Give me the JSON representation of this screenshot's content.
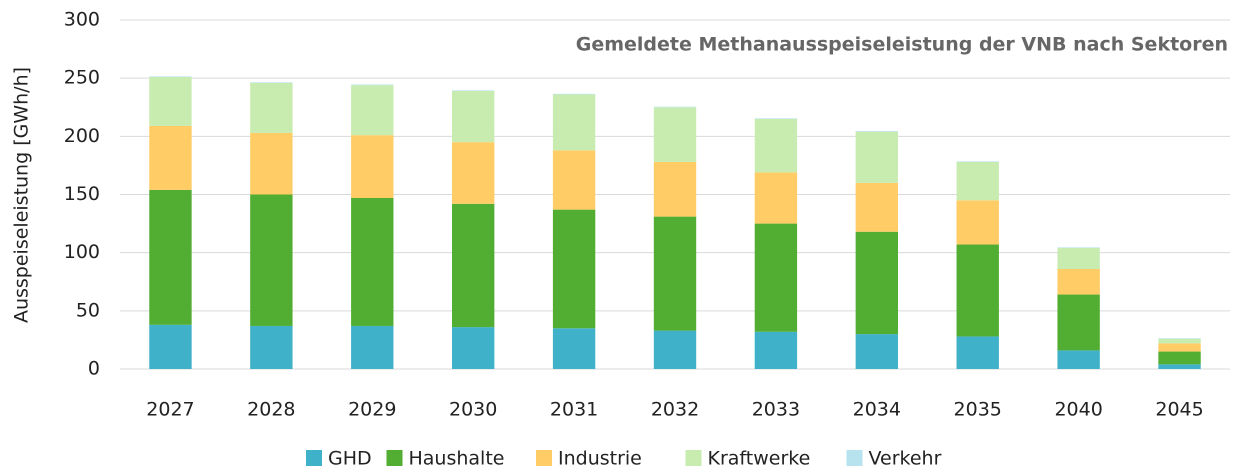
{
  "chart_data": {
    "type": "stacked_bar",
    "title": "Gemeldete Methanausspeiseleistung der VNB nach Sektoren",
    "y_label": "Ausspeiseleistung [GWh/h]",
    "categories": [
      "2027",
      "2028",
      "2029",
      "2030",
      "2031",
      "2032",
      "2033",
      "2034",
      "2035",
      "2040",
      "2045"
    ],
    "series": [
      {
        "name": "GHD",
        "color": "#3fb1c8",
        "values": [
          38,
          37,
          37,
          36,
          35,
          33,
          32,
          30,
          28,
          16,
          4
        ]
      },
      {
        "name": "Haushalte",
        "color": "#52ae32",
        "values": [
          116,
          113,
          110,
          106,
          102,
          98,
          93,
          88,
          79,
          48,
          11
        ]
      },
      {
        "name": "Industrie",
        "color": "#ffcc66",
        "values": [
          55,
          53,
          54,
          53,
          51,
          47,
          44,
          42,
          38,
          22,
          7
        ]
      },
      {
        "name": "Kraftwerke",
        "color": "#c8ecb0",
        "values": [
          42,
          43,
          43,
          44,
          48,
          47,
          46,
          44,
          33,
          18,
          4
        ]
      },
      {
        "name": "Verkehr",
        "color": "#b6e3ee",
        "values": [
          0.5,
          0.5,
          0.5,
          0.5,
          0.5,
          0.5,
          0.5,
          0.5,
          0.5,
          0.5,
          0.5
        ]
      }
    ],
    "ylim": [
      0,
      300
    ],
    "yticks": [
      0,
      50,
      100,
      150,
      200,
      250,
      300
    ],
    "grid": true,
    "legend": "bottom"
  }
}
